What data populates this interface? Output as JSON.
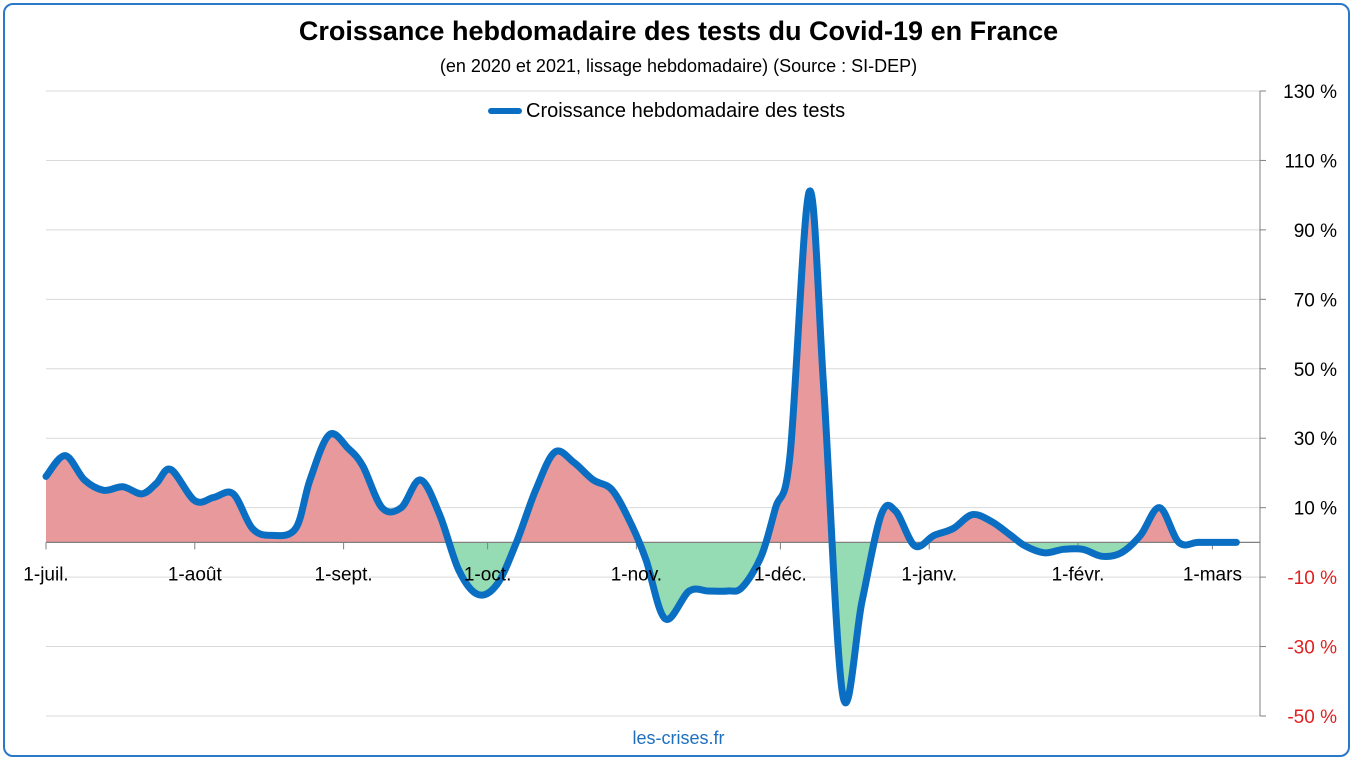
{
  "chart_data": {
    "type": "area",
    "title": "Croissance hebdomadaire des tests du Covid-19 en France",
    "subtitle": "(en 2020 et 2021, lissage hebdomadaire) (Source : SI-DEP)",
    "x_tick_labels": [
      "1-juil.",
      "1-août",
      "1-sept.",
      "1-oct.",
      "1-nov.",
      "1-déc.",
      "1-janv.",
      "1-févr.",
      "1-mars"
    ],
    "y_tick_labels": [
      "130 %",
      "110 %",
      "90 %",
      "70 %",
      "50 %",
      "30 %",
      "10 %",
      "-10 %",
      "-30 %",
      "-50 %"
    ],
    "ylim": [
      -50,
      130
    ],
    "y_axis_position": "right",
    "grid": true,
    "legend_position": "top",
    "source": "les-crises.fr",
    "colors": {
      "line": "#0a6fc2",
      "positive_fill": "#e8999b",
      "negative_fill": "#95dcb4",
      "negative_tick": "#e02020",
      "grid": "#d9d9d9",
      "frame": "#2a78c8"
    },
    "series": [
      {
        "name": "Croissance hebdomadaire des tests",
        "x_unit": "days since 1-juil.",
        "x": [
          0,
          4,
          8,
          12,
          16,
          20,
          23,
          26,
          31,
          35,
          39,
          43,
          47,
          52,
          55,
          59,
          63,
          66,
          70,
          74,
          78,
          82,
          86,
          90,
          94,
          98,
          102,
          106,
          110,
          114,
          118,
          122,
          125,
          129,
          134,
          138,
          142,
          145,
          149,
          152,
          155,
          159,
          162,
          166,
          170,
          174,
          177,
          181,
          185,
          189,
          193,
          197,
          201,
          204,
          208,
          212,
          216,
          220,
          224,
          228,
          232,
          236,
          240,
          244,
          248
        ],
        "values": [
          19,
          25,
          18,
          15,
          16,
          14,
          17,
          21,
          12,
          13,
          14,
          4,
          2,
          4,
          18,
          31,
          27,
          22,
          10,
          10,
          18,
          8,
          -8,
          -15,
          -12,
          0,
          15,
          26,
          23,
          18,
          15,
          5,
          -5,
          -22,
          -14,
          -14,
          -14,
          -13,
          -4,
          10,
          25,
          101,
          45,
          -44,
          -17,
          8,
          9,
          -1,
          2,
          4,
          8,
          6,
          2,
          -1,
          -3,
          -2,
          -2,
          -4,
          -3,
          2,
          10,
          0,
          0,
          0,
          0
        ]
      }
    ]
  },
  "source": "les-crises.fr"
}
